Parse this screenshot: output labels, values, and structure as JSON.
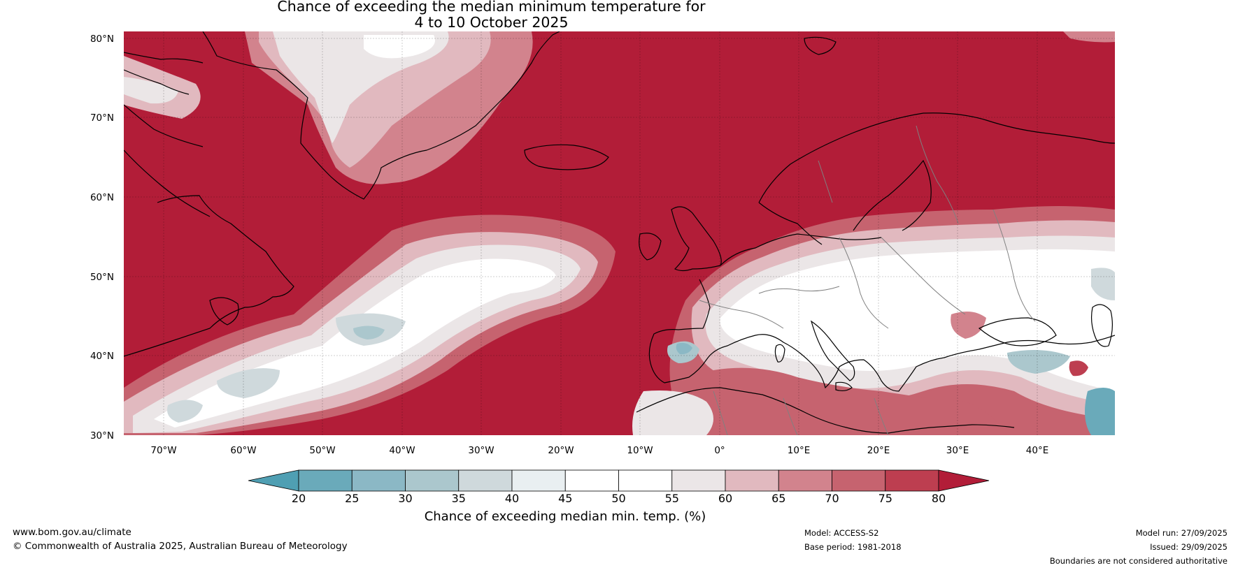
{
  "title": {
    "line1": "Chance of exceeding the median minimum temperature for",
    "line2": "4 to 10 October 2025"
  },
  "lat_labels": [
    "80°N",
    "70°N",
    "60°N",
    "50°N",
    "40°N",
    "30°N"
  ],
  "lon_labels": [
    "70°W",
    "60°W",
    "50°W",
    "40°W",
    "30°W",
    "20°W",
    "10°W",
    "0°",
    "10°E",
    "20°E",
    "30°E",
    "40°E"
  ],
  "colorbar": {
    "ticks": [
      "20",
      "25",
      "30",
      "35",
      "40",
      "45",
      "50",
      "55",
      "60",
      "65",
      "70",
      "75",
      "80"
    ],
    "label": "Chance of exceeding median min. temp. (%)",
    "colors": {
      "below_20": "#4f9fb3",
      "20_25": "#6aaaba",
      "25_30": "#8bb8c5",
      "30_35": "#abc7cd",
      "35_40": "#cfd9dc",
      "40_45": "#e9eff1",
      "45_50": "#ffffff",
      "50_55": "#ffffff",
      "55_60": "#ebe6e7",
      "60_65": "#e1b9bf",
      "65_70": "#d2838d",
      "70_75": "#c6636f",
      "75_80": "#bd3e50",
      "above_80": "#b21d38"
    }
  },
  "footer": {
    "website": "www.bom.gov.au/climate",
    "copyright": "© Commonwealth of Australia 2025, Australian Bureau of Meteorology",
    "model": "Model: ACCESS-S2",
    "base_period": "Base period: 1981-2018",
    "model_run": "Model run: 27/09/2025",
    "issued": "Issued: 29/09/2025",
    "disclaimer": "Boundaries are not considered authoritative"
  }
}
